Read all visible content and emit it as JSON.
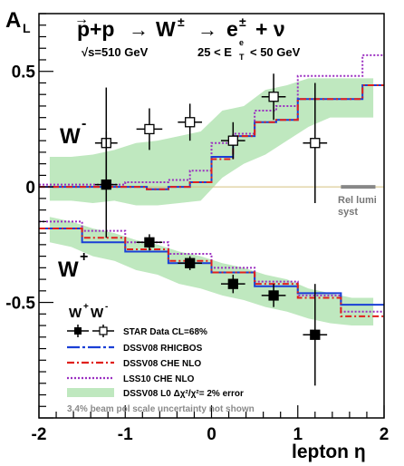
{
  "chart_data": {
    "type": "scatter",
    "title": {
      "process_p": "p",
      "process_rest1": "+p",
      "arrow1": "→",
      "process_W": "W",
      "process_W_sup": "±",
      "arrow2": "→",
      "process_e": "e",
      "process_e_sup": "±",
      "process_plus_nu": "+ ν",
      "energy": "√s=510 GeV",
      "cut_pre": "25 < E",
      "cut_sub": "T",
      "cut_sup": "e",
      "cut_post": "< 50 GeV"
    },
    "ylabel_main": "A",
    "ylabel_sub": "L",
    "xlabel": "lepton  η",
    "xlim": [
      -2,
      2
    ],
    "ylim": [
      -1,
      0.75
    ],
    "xticks": [
      -2,
      -1,
      0,
      1,
      2
    ],
    "yticks": [
      {
        "value": 0.5,
        "label": "0.5"
      },
      {
        "value": 0,
        "label": "0"
      },
      {
        "value": -0.5,
        "label": "-0.5"
      }
    ],
    "labels": {
      "wminus_main": "W",
      "wminus_sup": "-",
      "wplus_main": "W",
      "wplus_sup": "+",
      "legend_header_wplus": "W",
      "legend_header_wplus_sup": "+",
      "legend_header_wminus": "W",
      "legend_header_wminus_sup": "-",
      "rel_lumi_1": "Rel lumi",
      "rel_lumi_2": "syst"
    },
    "legend": [
      {
        "key": "star",
        "label": "STAR Data CL=68%"
      },
      {
        "key": "rhicbos",
        "label": "DSSV08  RHICBOS"
      },
      {
        "key": "che",
        "label": "DSSV08  CHE NLO"
      },
      {
        "key": "lss",
        "label": "LSS10 CHE NLO"
      },
      {
        "key": "band",
        "label": "DSSV08 L0  Δχ²/χ²= 2% error"
      }
    ],
    "footnote": "3.4% beam pol scale uncertainty not shown",
    "colors": {
      "rhicbos": "#1a3fd6",
      "che": "#e0201c",
      "lss": "#9b2fc1",
      "band": "#bfe8bf",
      "zero_line": "#d4c17f",
      "lumi": "#888888"
    },
    "rel_lumi_band": {
      "x": [
        1.5,
        1.9
      ],
      "y": 0
    },
    "star_wminus": [
      {
        "x": -1.22,
        "y": 0.19,
        "xerr": 0.13,
        "yerr_lo": 0.2,
        "yerr_hi": 0.24
      },
      {
        "x": -0.72,
        "y": 0.25,
        "xerr": 0.15,
        "yerr_lo": 0.09,
        "yerr_hi": 0.09
      },
      {
        "x": -0.25,
        "y": 0.28,
        "xerr": 0.14,
        "yerr_lo": 0.08,
        "yerr_hi": 0.08
      },
      {
        "x": 0.25,
        "y": 0.2,
        "xerr": 0.14,
        "yerr_lo": 0.08,
        "yerr_hi": 0.08
      },
      {
        "x": 0.72,
        "y": 0.39,
        "xerr": 0.14,
        "yerr_lo": 0.1,
        "yerr_hi": 0.1
      },
      {
        "x": 1.2,
        "y": 0.19,
        "xerr": 0.14,
        "yerr_lo": 0.26,
        "yerr_hi": 0.26
      }
    ],
    "star_wplus": [
      {
        "x": -1.22,
        "y": 0.01,
        "xerr": 0.13,
        "yerr_lo": 0.23,
        "yerr_hi": 0.23
      },
      {
        "x": -0.72,
        "y": -0.24,
        "xerr": 0.15,
        "yerr_lo": 0.035,
        "yerr_hi": 0.035
      },
      {
        "x": -0.25,
        "y": -0.33,
        "xerr": 0.14,
        "yerr_lo": 0.03,
        "yerr_hi": 0.03
      },
      {
        "x": 0.25,
        "y": -0.42,
        "xerr": 0.14,
        "yerr_lo": 0.04,
        "yerr_hi": 0.04
      },
      {
        "x": 0.72,
        "y": -0.47,
        "xerr": 0.14,
        "yerr_lo": 0.05,
        "yerr_hi": 0.05
      },
      {
        "x": 1.2,
        "y": -0.64,
        "xerr": 0.14,
        "yerr_lo": 0.22,
        "yerr_hi": 0.22
      }
    ],
    "theory_wminus": {
      "edges": [
        -2.0,
        -1.75,
        -1.5,
        -1.25,
        -1.0,
        -0.75,
        -0.5,
        -0.25,
        0.0,
        0.25,
        0.5,
        0.75,
        1.0,
        1.25,
        1.5,
        1.75,
        2.0
      ],
      "rhicbos": [
        0.0,
        0.0,
        0.0,
        0.0,
        0.0,
        -0.01,
        0.0,
        0.02,
        0.13,
        0.22,
        0.28,
        0.29,
        0.38,
        0.38,
        0.38,
        0.44
      ],
      "che": [
        0.0,
        0.0,
        0.0,
        0.0,
        0.0,
        -0.01,
        0.0,
        0.02,
        0.12,
        0.22,
        0.28,
        0.29,
        0.38,
        0.38,
        0.38,
        0.44
      ],
      "lss": [
        0.01,
        0.01,
        0.01,
        0.01,
        0.02,
        0.02,
        0.03,
        0.07,
        0.19,
        0.23,
        0.33,
        0.35,
        0.48,
        0.48,
        0.48,
        0.57
      ],
      "band_lo": [
        -0.06,
        -0.06,
        -0.07,
        -0.06,
        -0.08,
        -0.08,
        -0.07,
        -0.06,
        0.04,
        0.1,
        0.14,
        0.2,
        0.26,
        0.3,
        0.3,
        0.3
      ],
      "band_hi": [
        0.13,
        0.13,
        0.14,
        0.16,
        0.19,
        0.2,
        0.22,
        0.24,
        0.33,
        0.35,
        0.42,
        0.44,
        0.47,
        0.47,
        0.47,
        0.47
      ]
    },
    "theory_wplus": {
      "edges": [
        -2.0,
        -1.75,
        -1.5,
        -1.25,
        -1.0,
        -0.75,
        -0.5,
        -0.25,
        0.0,
        0.25,
        0.5,
        0.75,
        1.0,
        1.25,
        1.5,
        1.75,
        2.0
      ],
      "rhicbos": [
        -0.18,
        -0.18,
        -0.24,
        -0.24,
        -0.28,
        -0.28,
        -0.33,
        -0.33,
        -0.37,
        -0.37,
        -0.43,
        -0.43,
        -0.46,
        -0.46,
        -0.51,
        -0.51
      ],
      "che": [
        -0.18,
        -0.18,
        -0.22,
        -0.22,
        -0.27,
        -0.27,
        -0.32,
        -0.32,
        -0.37,
        -0.37,
        -0.42,
        -0.42,
        -0.48,
        -0.48,
        -0.56,
        -0.56
      ],
      "lss": [
        -0.15,
        -0.15,
        -0.19,
        -0.19,
        -0.24,
        -0.24,
        -0.29,
        -0.29,
        -0.35,
        -0.35,
        -0.41,
        -0.41,
        -0.47,
        -0.47,
        -0.54,
        -0.54
      ],
      "band_lo": [
        -0.24,
        -0.26,
        -0.3,
        -0.32,
        -0.36,
        -0.38,
        -0.42,
        -0.44,
        -0.47,
        -0.49,
        -0.52,
        -0.54,
        -0.57,
        -0.59,
        -0.6,
        -0.6
      ],
      "band_hi": [
        -0.13,
        -0.15,
        -0.18,
        -0.2,
        -0.23,
        -0.25,
        -0.28,
        -0.3,
        -0.33,
        -0.35,
        -0.38,
        -0.4,
        -0.44,
        -0.46,
        -0.48,
        -0.48
      ]
    }
  }
}
